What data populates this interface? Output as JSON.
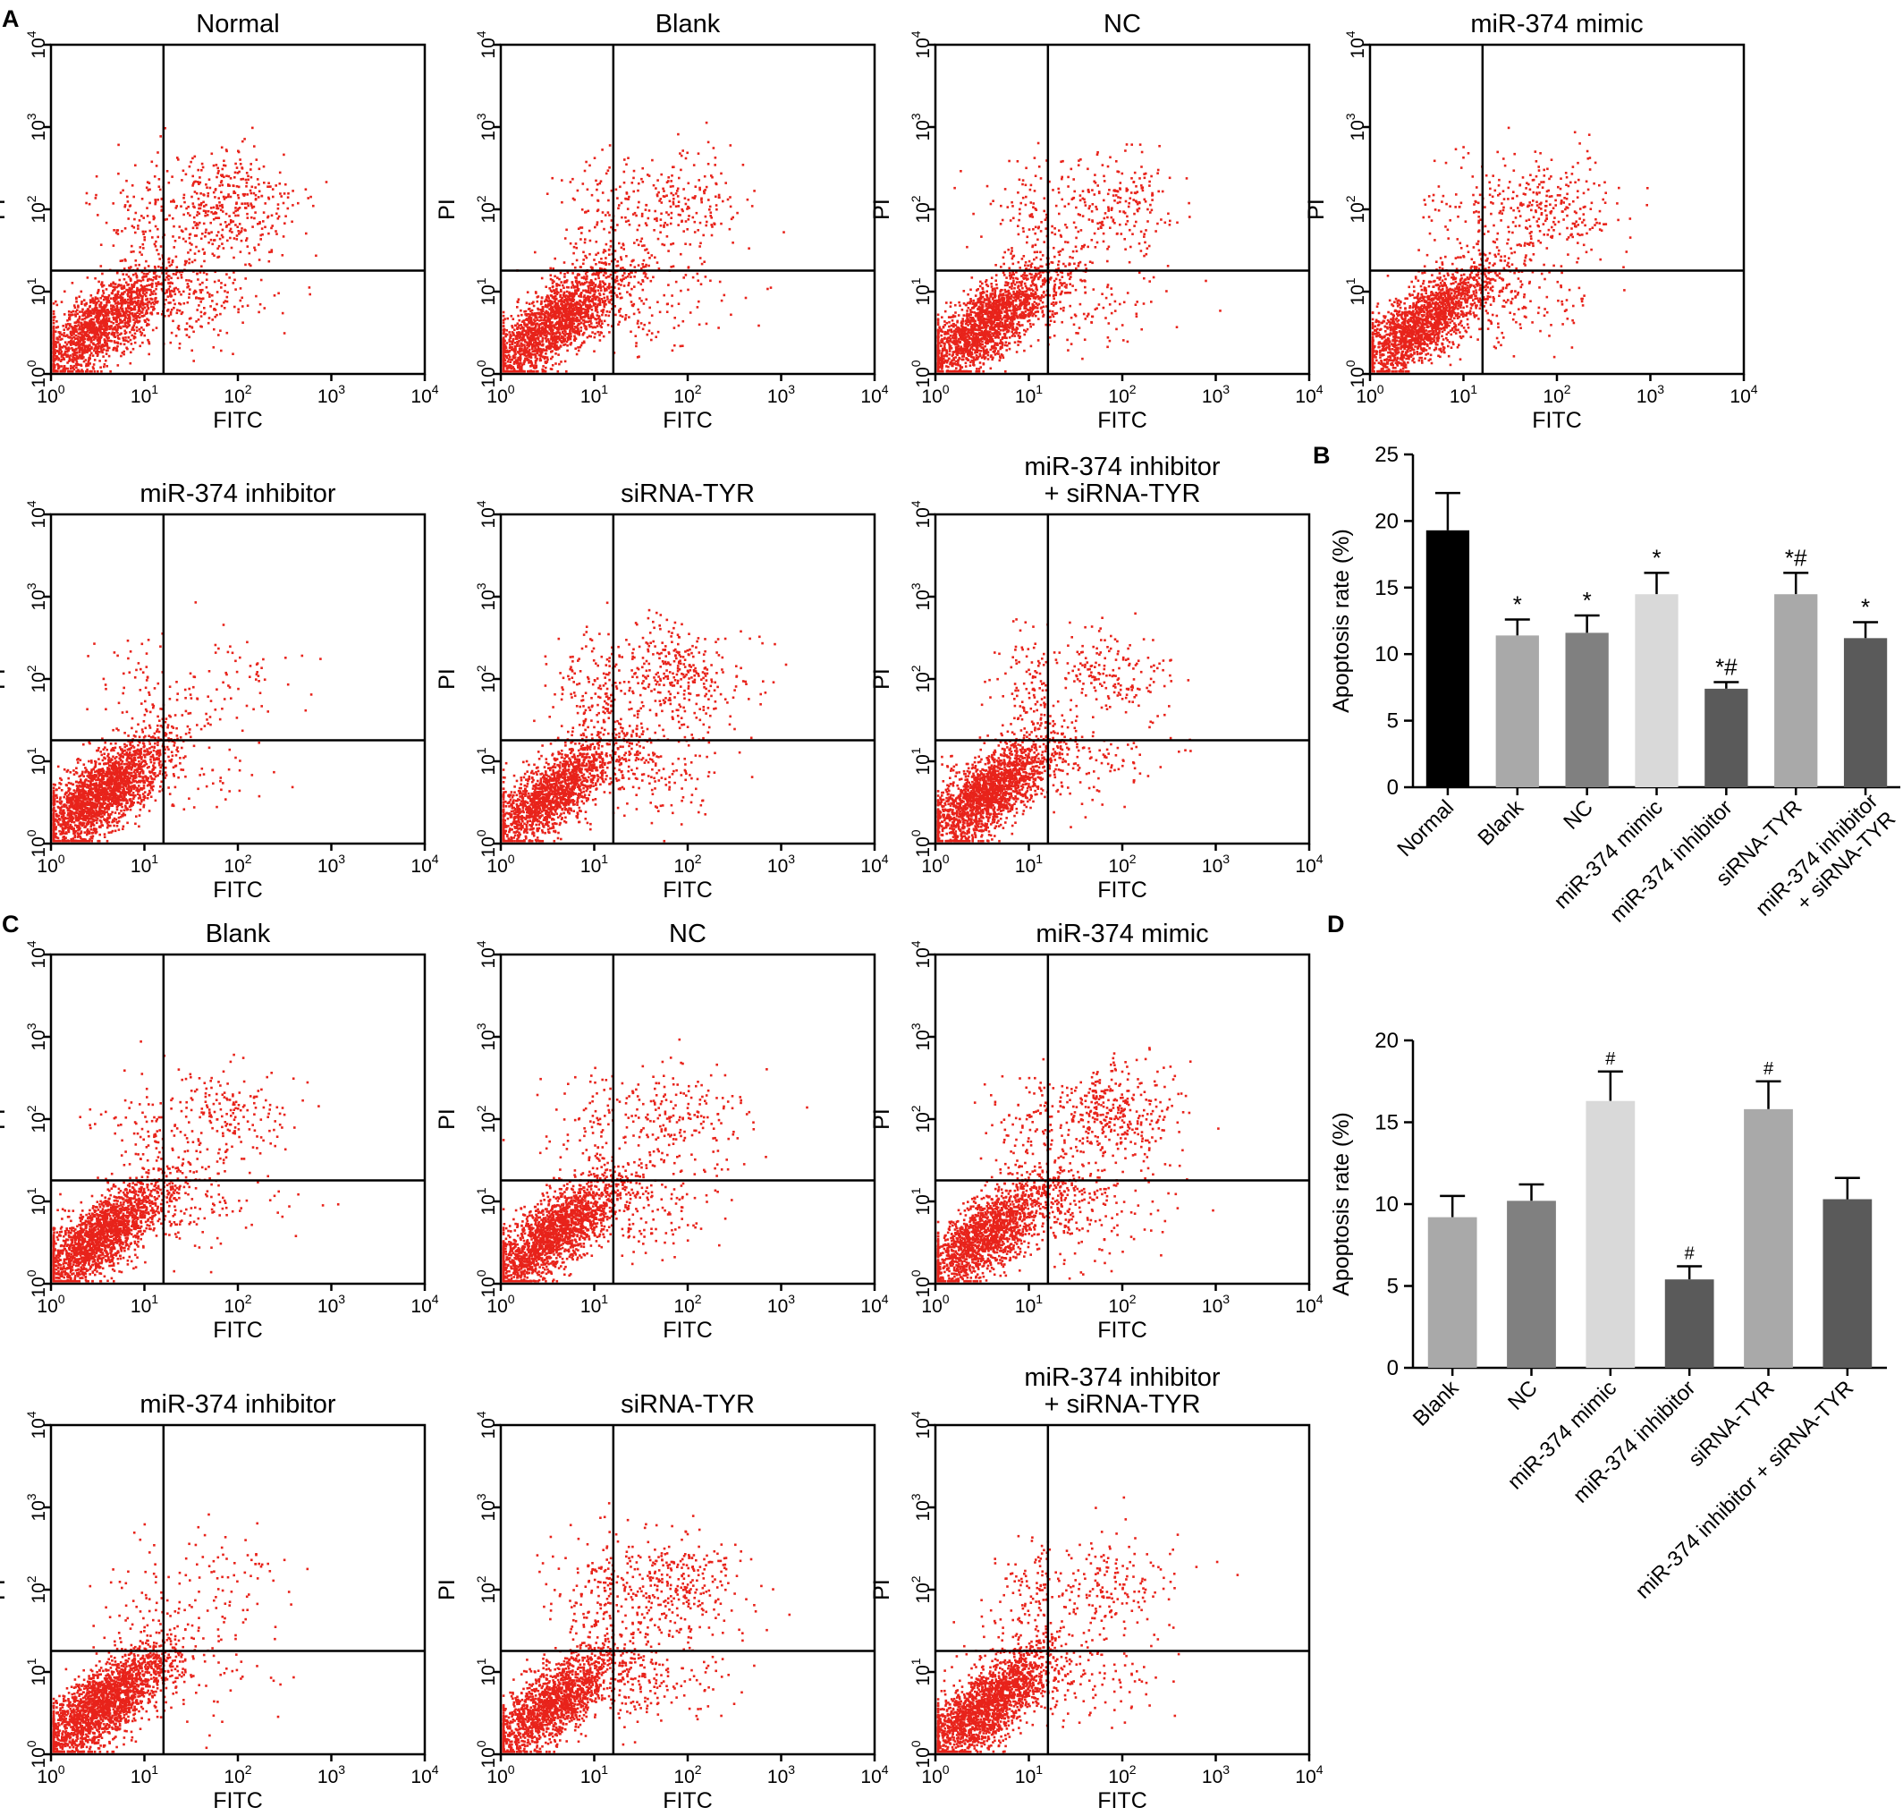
{
  "figure": {
    "panel_labels": [
      "A",
      "B",
      "C",
      "D"
    ]
  },
  "chart_data": [
    {
      "panel": "A",
      "type": "scatter",
      "plots": [
        {
          "title": "Normal",
          "xlabel": "FITC",
          "ylabel": "PI",
          "n_points": 2400,
          "upper_right": 0.17,
          "upper_left": 0.04,
          "lower_right": 0.07
        },
        {
          "title": "Blank",
          "xlabel": "FITC",
          "ylabel": "PI",
          "n_points": 2400,
          "upper_right": 0.1,
          "upper_left": 0.03,
          "lower_right": 0.05
        },
        {
          "title": "NC",
          "xlabel": "FITC",
          "ylabel": "PI",
          "n_points": 2400,
          "upper_right": 0.1,
          "upper_left": 0.03,
          "lower_right": 0.05
        },
        {
          "title": "miR-374 mimic",
          "xlabel": "FITC",
          "ylabel": "PI",
          "n_points": 2400,
          "upper_right": 0.13,
          "upper_left": 0.02,
          "lower_right": 0.05
        },
        {
          "title": "miR-374 inhibitor",
          "xlabel": "FITC",
          "ylabel": "PI",
          "n_points": 2400,
          "upper_right": 0.03,
          "upper_left": 0.02,
          "lower_right": 0.02
        },
        {
          "title": "siRNA-TYR",
          "xlabel": "FITC",
          "ylabel": "PI",
          "n_points": 2400,
          "upper_right": 0.15,
          "upper_left": 0.05,
          "lower_right": 0.07
        },
        {
          "title": "miR-374 inhibitor\n+ siRNA-TYR",
          "xlabel": "FITC",
          "ylabel": "PI",
          "n_points": 2400,
          "upper_right": 0.08,
          "upper_left": 0.04,
          "lower_right": 0.04
        }
      ],
      "x_ticks": [
        "10^0",
        "10^1",
        "10^2",
        "10^3",
        "10^4"
      ],
      "y_ticks": [
        "10^0",
        "10^1",
        "10^2",
        "10^3",
        "10^4"
      ],
      "xlim": [
        1,
        10000
      ],
      "ylim": [
        1,
        10000
      ],
      "x_scale": "log",
      "y_scale": "log",
      "gate": {
        "x": 16,
        "y": 18
      },
      "point_color": "#e8231b"
    },
    {
      "panel": "B",
      "type": "bar",
      "ylabel": "Apoptosis rate (%)",
      "xlabel": "",
      "ylim": [
        0,
        25
      ],
      "yticks": [
        0,
        5,
        10,
        15,
        20,
        25
      ],
      "categories": [
        "Normal",
        "Blank",
        "NC",
        "miR-374 mimic",
        "miR-374 inhibitor",
        "siRNA-TYR",
        "miR-374 inhibitor\n+ siRNA-TYR"
      ],
      "values": [
        19.3,
        11.4,
        11.6,
        14.5,
        7.4,
        14.5,
        11.2
      ],
      "errors": [
        2.8,
        1.2,
        1.3,
        1.6,
        0.5,
        1.6,
        1.2
      ],
      "colors": [
        "#000000",
        "#a9a9a9",
        "#808080",
        "#d9d9d9",
        "#5a5a5a",
        "#a9a9a9",
        "#5a5a5a"
      ],
      "annotations": [
        "",
        "*",
        "*",
        "*",
        "*#",
        "*#",
        "*"
      ]
    },
    {
      "panel": "C",
      "type": "scatter",
      "plots": [
        {
          "title": "Blank",
          "xlabel": "FITC",
          "ylabel": "PI",
          "n_points": 2400,
          "upper_right": 0.08,
          "upper_left": 0.03,
          "lower_right": 0.04
        },
        {
          "title": "NC",
          "xlabel": "FITC",
          "ylabel": "PI",
          "n_points": 2400,
          "upper_right": 0.09,
          "upper_left": 0.03,
          "lower_right": 0.05
        },
        {
          "title": "miR-374 mimic",
          "xlabel": "FITC",
          "ylabel": "PI",
          "n_points": 2400,
          "upper_right": 0.17,
          "upper_left": 0.03,
          "lower_right": 0.07
        },
        {
          "title": "miR-374 inhibitor",
          "xlabel": "FITC",
          "ylabel": "PI",
          "n_points": 2400,
          "upper_right": 0.04,
          "upper_left": 0.02,
          "lower_right": 0.02
        },
        {
          "title": "siRNA-TYR",
          "xlabel": "FITC",
          "ylabel": "PI",
          "n_points": 2400,
          "upper_right": 0.15,
          "upper_left": 0.05,
          "lower_right": 0.07
        },
        {
          "title": "miR-374 inhibitor\n+ siRNA-TYR",
          "xlabel": "FITC",
          "ylabel": "PI",
          "n_points": 2400,
          "upper_right": 0.08,
          "upper_left": 0.04,
          "lower_right": 0.04
        }
      ],
      "x_ticks": [
        "10^0",
        "10^1",
        "10^2",
        "10^3",
        "10^4"
      ],
      "y_ticks": [
        "10^0",
        "10^1",
        "10^2",
        "10^3",
        "10^4"
      ],
      "xlim": [
        1,
        10000
      ],
      "ylim": [
        1,
        10000
      ],
      "x_scale": "log",
      "y_scale": "log",
      "gate": {
        "x": 16,
        "y": 18
      },
      "point_color": "#e8231b"
    },
    {
      "panel": "D",
      "type": "bar",
      "ylabel": "Apoptosis rate (%)",
      "xlabel": "",
      "ylim": [
        0,
        20
      ],
      "yticks": [
        0,
        5,
        10,
        15,
        20
      ],
      "categories": [
        "Blank",
        "NC",
        "miR-374 mimic",
        "miR-374 inhibitor",
        "siRNA-TYR",
        "miR-374 inhibitor + siRNA-TYR"
      ],
      "values": [
        9.2,
        10.2,
        16.3,
        5.4,
        15.8,
        10.3
      ],
      "errors": [
        1.3,
        1.0,
        1.8,
        0.8,
        1.7,
        1.3
      ],
      "colors": [
        "#a9a9a9",
        "#808080",
        "#d9d9d9",
        "#5a5a5a",
        "#a9a9a9",
        "#5a5a5a"
      ],
      "annotations": [
        "",
        "",
        "#",
        "#",
        "#",
        ""
      ]
    }
  ]
}
